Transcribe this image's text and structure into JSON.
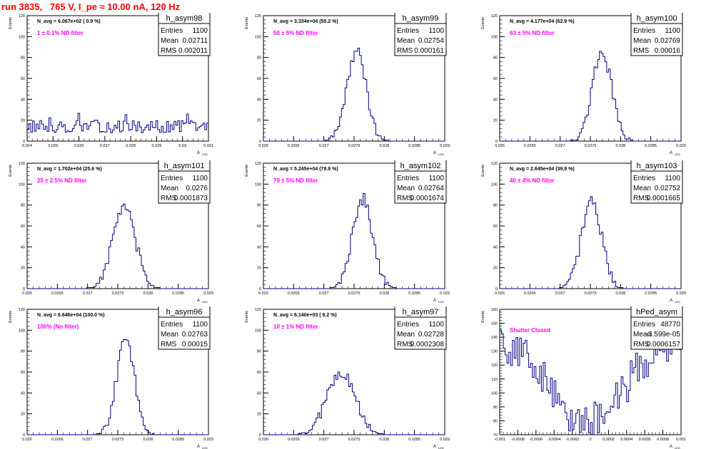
{
  "run_title": "run 3835,   765 V, I_pe ≈ 10.00 nA, 120 Hz",
  "colors": {
    "title": "#ff0000",
    "histogram": "#000080",
    "annotation": "#ff00ff",
    "axis": "#000000"
  },
  "common": {
    "ylabel": "Events",
    "xlabel": "A",
    "xlabel_sub": "LED"
  },
  "chart_data": [
    {
      "type": "histogram",
      "name": "h_asym98",
      "nlabel": "N_avg = 6.067e+02 ( 0.9 %)",
      "filter_label": "1 ± 0.1% ND filter",
      "stats": [
        [
          "Entries",
          "1100"
        ],
        [
          "Mean",
          "0.02711"
        ],
        [
          "RMS",
          "0.002011"
        ]
      ],
      "xlim": [
        0.024,
        0.031
      ],
      "ylim": [
        0,
        120
      ],
      "xticks": [
        0.024,
        0.025,
        0.026,
        0.027,
        0.028,
        0.029,
        0.03,
        0.031
      ],
      "xtick_labels": [
        "0.024",
        "0.025",
        "0.026",
        "0.027",
        "0.028",
        "0.029",
        "0.03",
        "0.031"
      ],
      "yticks": [
        0,
        20,
        40,
        60,
        80,
        100,
        120
      ],
      "ytick_labels": [
        "0",
        "20",
        "40",
        "60",
        "80",
        "100",
        "120"
      ],
      "mode": "flat",
      "mean": 0.02711,
      "sigma": 0.002011,
      "peak": 14,
      "noise": 6,
      "bins": [
        0.024,
        0.031,
        100
      ]
    },
    {
      "type": "histogram",
      "name": "h_asym99",
      "nlabel": "N_avg = 3.334e+04 (50.2 %)",
      "filter_label": "50 ± 5% ND filter",
      "stats": [
        [
          "Entries",
          "1100"
        ],
        [
          "Mean",
          "0.02754"
        ],
        [
          "RMS",
          "0.000161"
        ]
      ],
      "xlim": [
        0.026,
        0.029
      ],
      "ylim": [
        0,
        120
      ],
      "xticks": [
        0.026,
        0.0265,
        0.027,
        0.0275,
        0.028,
        0.0285,
        0.029
      ],
      "xtick_labels": [
        "0.026",
        "0.0265",
        "0.027",
        "0.0275",
        "0.028",
        "0.0285",
        "0.029"
      ],
      "yticks": [
        0,
        20,
        40,
        60,
        80,
        100,
        120
      ],
      "ytick_labels": [
        "0",
        "20",
        "40",
        "60",
        "80",
        "100",
        "120"
      ],
      "mode": "gauss",
      "mean": 0.02754,
      "sigma": 0.000161,
      "peak": 86,
      "noise": 6,
      "bins": [
        0.026,
        0.029,
        100
      ]
    },
    {
      "type": "histogram",
      "name": "h_asym100",
      "nlabel": "N_avg = 4.177e+04 (62.9 %)",
      "filter_label": "63 ± 5% ND filter",
      "stats": [
        [
          "Entries",
          "1100"
        ],
        [
          "Mean",
          "0.02769"
        ],
        [
          "RMS",
          "0.00016"
        ]
      ],
      "xlim": [
        0.026,
        0.029
      ],
      "ylim": [
        0,
        120
      ],
      "xticks": [
        0.026,
        0.0265,
        0.027,
        0.0275,
        0.028,
        0.0285,
        0.029
      ],
      "xtick_labels": [
        "0.026",
        "0.0265",
        "0.027",
        "0.0275",
        "0.028",
        "0.0285",
        "0.029"
      ],
      "yticks": [
        0,
        20,
        40,
        60,
        80,
        100,
        120
      ],
      "ytick_labels": [
        "0",
        "20",
        "40",
        "60",
        "80",
        "100",
        "120"
      ],
      "mode": "gauss",
      "mean": 0.02769,
      "sigma": 0.00016,
      "peak": 86,
      "noise": 6,
      "bins": [
        0.026,
        0.029,
        100
      ]
    },
    {
      "type": "histogram",
      "name": "h_asym101",
      "nlabel": "N_avg = 1.702e+04 (25.6 %)",
      "filter_label": "25 ± 2.5% ND filter",
      "stats": [
        [
          "Entries",
          "1100"
        ],
        [
          "Mean",
          "0.0276"
        ],
        [
          "RMS",
          "0.0001873"
        ]
      ],
      "xlim": [
        0.026,
        0.029
      ],
      "ylim": [
        0,
        120
      ],
      "xticks": [
        0.026,
        0.0265,
        0.027,
        0.0275,
        0.028,
        0.0285,
        0.029
      ],
      "xtick_labels": [
        "0.026",
        "0.0265",
        "0.027",
        "0.0275",
        "0.028",
        "0.0285",
        "0.029"
      ],
      "yticks": [
        0,
        20,
        40,
        60,
        80,
        100,
        120
      ],
      "ytick_labels": [
        "0",
        "20",
        "40",
        "60",
        "80",
        "100",
        "120"
      ],
      "mode": "gauss",
      "mean": 0.0276,
      "sigma": 0.0001873,
      "peak": 78,
      "noise": 6,
      "bins": [
        0.026,
        0.029,
        100
      ]
    },
    {
      "type": "histogram",
      "name": "h_asym102",
      "nlabel": "N_avg = 5.245e+04 (78.9 %)",
      "filter_label": "79 ± 5% ND filter",
      "stats": [
        [
          "Entries",
          "1100"
        ],
        [
          "Mean",
          "0.02764"
        ],
        [
          "RMS",
          "0.0001674"
        ]
      ],
      "xlim": [
        0.026,
        0.029
      ],
      "ylim": [
        0,
        120
      ],
      "xticks": [
        0.026,
        0.0265,
        0.027,
        0.0275,
        0.028,
        0.0285,
        0.029
      ],
      "xtick_labels": [
        "0.026",
        "0.0265",
        "0.027",
        "0.0275",
        "0.028",
        "0.0285",
        "0.029"
      ],
      "yticks": [
        0,
        20,
        40,
        60,
        80,
        100,
        120
      ],
      "ytick_labels": [
        "0",
        "20",
        "40",
        "60",
        "80",
        "100",
        "120"
      ],
      "mode": "gauss",
      "mean": 0.02764,
      "sigma": 0.0001674,
      "peak": 86,
      "noise": 6,
      "bins": [
        0.026,
        0.029,
        100
      ]
    },
    {
      "type": "histogram",
      "name": "h_asym103",
      "nlabel": "N_avg = 2.645e+04 (39.8 %)",
      "filter_label": "40 ± 4% ND filter",
      "stats": [
        [
          "Entries",
          "1100"
        ],
        [
          "Mean",
          "0.02752"
        ],
        [
          "RMS",
          "0.0001665"
        ]
      ],
      "xlim": [
        0.026,
        0.029
      ],
      "ylim": [
        0,
        120
      ],
      "xticks": [
        0.026,
        0.0265,
        0.027,
        0.0275,
        0.028,
        0.0285,
        0.029
      ],
      "xtick_labels": [
        "0.026",
        "0.0265",
        "0.027",
        "0.0275",
        "0.028",
        "0.0285",
        "0.029"
      ],
      "yticks": [
        0,
        20,
        40,
        60,
        80,
        100,
        120
      ],
      "ytick_labels": [
        "0",
        "20",
        "40",
        "60",
        "80",
        "100",
        "120"
      ],
      "mode": "gauss",
      "mean": 0.02752,
      "sigma": 0.0001665,
      "peak": 84,
      "noise": 6,
      "bins": [
        0.026,
        0.029,
        100
      ]
    },
    {
      "type": "histogram",
      "name": "h_asym96",
      "nlabel": "N_avg = 6.646e+04 (100.0 %)",
      "filter_label": "100% (No filter)",
      "stats": [
        [
          "Entries",
          "1100"
        ],
        [
          "Mean",
          "0.02763"
        ],
        [
          "RMS",
          "0.00015"
        ]
      ],
      "xlim": [
        0.026,
        0.029
      ],
      "ylim": [
        0,
        120
      ],
      "xticks": [
        0.026,
        0.0265,
        0.027,
        0.0275,
        0.028,
        0.0285,
        0.029
      ],
      "xtick_labels": [
        "0.026",
        "0.0265",
        "0.027",
        "0.0275",
        "0.028",
        "0.0285",
        "0.029"
      ],
      "yticks": [
        0,
        20,
        40,
        60,
        80,
        100,
        120
      ],
      "ytick_labels": [
        "0",
        "20",
        "40",
        "60",
        "80",
        "100",
        "120"
      ],
      "mode": "gauss",
      "mean": 0.02763,
      "sigma": 0.00015,
      "peak": 90,
      "noise": 6,
      "bins": [
        0.026,
        0.029,
        100
      ]
    },
    {
      "type": "histogram",
      "name": "h_asym97",
      "nlabel": "N_avg = 6.140e+03 ( 9.2 %)",
      "filter_label": "10 ± 1% ND filter",
      "stats": [
        [
          "Entries",
          "1100"
        ],
        [
          "Mean",
          "0.02728"
        ],
        [
          "RMS",
          "0.0002308"
        ]
      ],
      "xlim": [
        0.026,
        0.029
      ],
      "ylim": [
        0,
        120
      ],
      "xticks": [
        0.026,
        0.0265,
        0.027,
        0.0275,
        0.028,
        0.0285,
        0.029
      ],
      "xtick_labels": [
        "0.026",
        "0.0265",
        "0.027",
        "0.0275",
        "0.028",
        "0.0285",
        "0.029"
      ],
      "yticks": [
        0,
        20,
        40,
        60,
        80,
        100,
        120
      ],
      "ytick_labels": [
        "0",
        "20",
        "40",
        "60",
        "80",
        "100",
        "120"
      ],
      "mode": "gauss",
      "mean": 0.02728,
      "sigma": 0.0002308,
      "peak": 60,
      "noise": 6,
      "bins": [
        0.026,
        0.029,
        100
      ]
    },
    {
      "type": "histogram",
      "name": "hPed_asym",
      "nlabel": "",
      "filter_label": "Shutter Closed",
      "stats": [
        [
          "Entries",
          "48770"
        ],
        [
          "Mean",
          "-3.599e-05"
        ],
        [
          "RMS",
          "0.0006157"
        ]
      ],
      "xlim": [
        -0.001,
        0.001
      ],
      "ylim": [
        70,
        160
      ],
      "xticks": [
        -0.001,
        -0.0008,
        -0.0006,
        -0.0004,
        -0.0002,
        0,
        0.0002,
        0.0004,
        0.0006,
        0.0008,
        0.001
      ],
      "xtick_labels": [
        "-0.001",
        "-0.0008",
        "-0.0006",
        "-0.0004",
        "-0.0002",
        "0",
        "0.0002",
        "0.0004",
        "0.0006",
        "0.0008",
        "0.001"
      ],
      "yticks": [
        70,
        80,
        90,
        100,
        110,
        120,
        130,
        140,
        150,
        160
      ],
      "ytick_labels": [
        "70",
        "80",
        "90",
        "100",
        "110",
        "120",
        "130",
        "140",
        "150",
        "160"
      ],
      "mode": "ped",
      "mean": -3.599e-05,
      "sigma": 0.0006157,
      "peak": 140,
      "noise": 14,
      "bins": [
        -0.001,
        0.001,
        100
      ]
    }
  ]
}
